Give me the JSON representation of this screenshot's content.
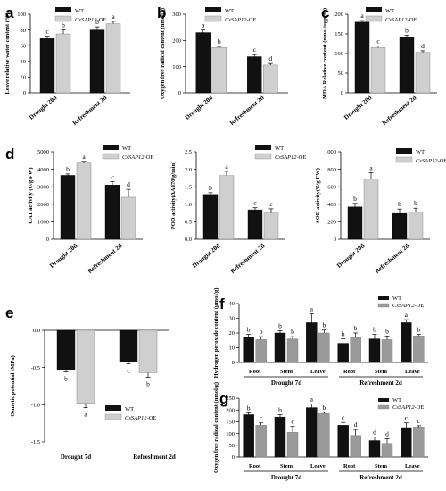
{
  "legend": {
    "wt": "WT",
    "oe_prefix": "CsSAP12",
    "oe_suffix": "-OE"
  },
  "colors": {
    "wt": "#111111",
    "oe": "#cfcfcf",
    "oe_g": "#9a9a9a"
  },
  "chart_data": [
    {
      "id": "a",
      "type": "bar",
      "letter": "a",
      "ylabel": "Leave relative water content (%)",
      "categories": [
        "Drought 20d",
        "Refreshment 2d"
      ],
      "ylim": [
        0,
        100
      ],
      "yticks": [
        0,
        20,
        40,
        60,
        80,
        100
      ],
      "series": [
        {
          "name": "WT",
          "values": [
            69,
            80
          ],
          "errors": [
            3,
            4
          ],
          "labels": [
            "c",
            "b"
          ]
        },
        {
          "name": "CsSAP12-OE",
          "values": [
            75,
            88
          ],
          "errors": [
            5,
            3
          ],
          "labels": [
            "b",
            "a"
          ]
        }
      ]
    },
    {
      "id": "b",
      "type": "bar",
      "letter": "b",
      "ylabel": "Oxygen free radical content (nmol/g)",
      "categories": [
        "Drought 20d",
        "Refreshment 2d"
      ],
      "ylim": [
        0,
        300
      ],
      "yticks": [
        0,
        100,
        200,
        300
      ],
      "series": [
        {
          "name": "WT",
          "values": [
            230,
            138
          ],
          "errors": [
            10,
            8
          ],
          "labels": [
            "a",
            "c"
          ]
        },
        {
          "name": "CsSAP12-OE",
          "values": [
            173,
            106
          ],
          "errors": [
            4,
            6
          ],
          "labels": [
            "b",
            "d"
          ]
        }
      ]
    },
    {
      "id": "c",
      "type": "bar",
      "letter": "c",
      "ylabel": "MDA Relative content (nmol/ugprot)",
      "categories": [
        "Drought 20d",
        "Refreshment 2d"
      ],
      "ylim": [
        0,
        200
      ],
      "yticks": [
        0,
        50,
        100,
        150,
        200
      ],
      "series": [
        {
          "name": "WT",
          "values": [
            180,
            142
          ],
          "errors": [
            4,
            5
          ],
          "labels": [
            "a",
            "b"
          ]
        },
        {
          "name": "CsSAP12-OE",
          "values": [
            115,
            103
          ],
          "errors": [
            4,
            4
          ],
          "labels": [
            "c",
            "d"
          ]
        }
      ]
    },
    {
      "id": "d1",
      "type": "bar",
      "letter": "d",
      "ylabel": "CAT activity (U/g FW)",
      "categories": [
        "Drought 20d",
        "Refreshment 2d"
      ],
      "ylim": [
        0,
        5000
      ],
      "yticks": [
        0,
        1000,
        2000,
        3000,
        4000,
        5000
      ],
      "series": [
        {
          "name": "WT",
          "values": [
            3650,
            3100
          ],
          "errors": [
            80,
            200
          ],
          "labels": [
            "b",
            "c"
          ]
        },
        {
          "name": "CsSAP12-OE",
          "values": [
            4350,
            2400
          ],
          "errors": [
            100,
            450
          ],
          "labels": [
            "a",
            "d"
          ]
        }
      ]
    },
    {
      "id": "d2",
      "type": "bar",
      "letter": "",
      "ylabel": "POD activity(ΔA470/g/min)",
      "categories": [
        "Drought 20d",
        "Refreshment 2d"
      ],
      "ylim": [
        0,
        2.5
      ],
      "yticks": [
        0,
        0.5,
        1.0,
        1.5,
        2.0,
        2.5
      ],
      "series": [
        {
          "name": "WT",
          "values": [
            1.28,
            0.84
          ],
          "errors": [
            0.05,
            0.06
          ],
          "labels": [
            "b",
            "c"
          ]
        },
        {
          "name": "CsSAP12-OE",
          "values": [
            1.82,
            0.75
          ],
          "errors": [
            0.12,
            0.12
          ],
          "labels": [
            "a",
            "c"
          ]
        }
      ]
    },
    {
      "id": "d3",
      "type": "bar",
      "letter": "",
      "ylabel": "SOD activity(U/g FW)",
      "categories": [
        "Drought 20d",
        "Refreshment 2d"
      ],
      "ylim": [
        0,
        1000
      ],
      "yticks": [
        0,
        200,
        400,
        600,
        800,
        1000
      ],
      "series": [
        {
          "name": "WT",
          "values": [
            370,
            295
          ],
          "errors": [
            40,
            50
          ],
          "labels": [
            "b",
            "b"
          ]
        },
        {
          "name": "CsSAP12-OE",
          "values": [
            690,
            315
          ],
          "errors": [
            70,
            40
          ],
          "labels": [
            "a",
            "b"
          ]
        }
      ]
    },
    {
      "id": "e",
      "type": "bar",
      "letter": "e",
      "ylabel": "Osmotic potential (MPa)",
      "categories": [
        "Drought 7d",
        "Refreshment 2d"
      ],
      "ylim": [
        -1.5,
        0
      ],
      "yticks": [
        0.0,
        -0.5,
        -1.0,
        -1.5
      ],
      "series": [
        {
          "name": "WT",
          "values": [
            -0.53,
            -0.42
          ],
          "errors": [
            0.03,
            0.03
          ],
          "labels": [
            "b",
            "c"
          ]
        },
        {
          "name": "CsSAP12-OE",
          "values": [
            -0.98,
            -0.57
          ],
          "errors": [
            0.06,
            0.06
          ],
          "labels": [
            "a",
            "b"
          ]
        }
      ]
    },
    {
      "id": "f",
      "type": "bar",
      "letter": "f",
      "ylabel": "Hydrogen peroxide content (μmol/g)",
      "categories": [
        "Root",
        "Stem",
        "Leave",
        "Root",
        "Stem",
        "Leave"
      ],
      "groups": [
        "Drought 7d",
        "Refreshment 2d"
      ],
      "ylim": [
        0,
        40
      ],
      "yticks": [
        0,
        10,
        20,
        30,
        40
      ],
      "series": [
        {
          "name": "WT",
          "values": [
            17,
            20,
            27,
            13,
            16,
            27
          ],
          "errors": [
            2,
            1.5,
            6,
            3,
            3,
            2
          ],
          "labels": [
            "b",
            "b",
            "a",
            "b",
            "b",
            "a"
          ]
        },
        {
          "name": "CsSAP12-OE",
          "values": [
            15.5,
            16,
            20,
            17,
            15.5,
            18
          ],
          "errors": [
            2,
            1.5,
            2,
            3,
            2.5,
            1
          ],
          "labels": [
            "b",
            "b",
            "b",
            "b",
            "b",
            "b"
          ]
        }
      ]
    },
    {
      "id": "g",
      "type": "bar",
      "letter": "g",
      "ylabel": "Oxygen free radical content (nmol/g)",
      "categories": [
        "Root",
        "Stem",
        "Leave",
        "Root",
        "Stem",
        "Leave"
      ],
      "groups": [
        "Drought 7d",
        "Refreshment 2d"
      ],
      "ylim": [
        0,
        250
      ],
      "yticks": [
        0,
        50,
        100,
        150,
        200,
        250
      ],
      "series": [
        {
          "name": "WT",
          "values": [
            180,
            170,
            210,
            135,
            70,
            125
          ],
          "errors": [
            8,
            10,
            15,
            12,
            15,
            20
          ],
          "labels": [
            "b",
            "b",
            "a",
            "c",
            "d",
            "c"
          ]
        },
        {
          "name": "CsSAP12-OE",
          "values": [
            135,
            105,
            185,
            92,
            58,
            128
          ],
          "errors": [
            10,
            25,
            5,
            25,
            20,
            5
          ],
          "labels": [
            "c",
            "c",
            "b",
            "d",
            "d",
            "c"
          ]
        }
      ]
    }
  ]
}
